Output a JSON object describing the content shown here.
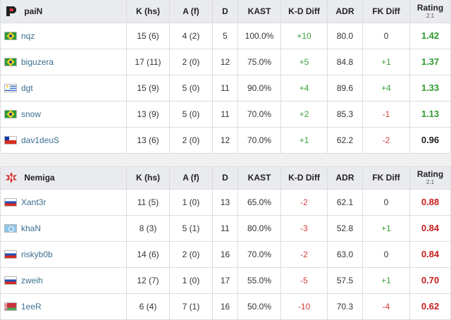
{
  "teams": [
    {
      "name": "paiN",
      "logo_icon": "pain-logo-icon",
      "headers": {
        "k": "K (hs)",
        "a": "A (f)",
        "d": "D",
        "kast": "KAST",
        "kd": "K-D Diff",
        "adr": "ADR",
        "fk": "FK Diff",
        "rating": "Rating",
        "rating_sub": "2.1"
      },
      "players": [
        {
          "flag": "br",
          "name": "nqz",
          "k": "15 (6)",
          "a": "4 (2)",
          "d": "5",
          "kast": "100.0%",
          "kd": "+10",
          "kd_sign": "pos",
          "adr": "80.0",
          "fk": "0",
          "fk_sign": "neutral",
          "rating": "1.42",
          "rating_class": "good"
        },
        {
          "flag": "br",
          "name": "biguzera",
          "k": "17 (11)",
          "a": "2 (0)",
          "d": "12",
          "kast": "75.0%",
          "kd": "+5",
          "kd_sign": "pos",
          "adr": "84.8",
          "fk": "+1",
          "fk_sign": "pos",
          "rating": "1.37",
          "rating_class": "good"
        },
        {
          "flag": "uy",
          "name": "dgt",
          "k": "15 (9)",
          "a": "5 (0)",
          "d": "11",
          "kast": "90.0%",
          "kd": "+4",
          "kd_sign": "pos",
          "adr": "89.6",
          "fk": "+4",
          "fk_sign": "pos",
          "rating": "1.33",
          "rating_class": "good"
        },
        {
          "flag": "br",
          "name": "snow",
          "k": "13 (9)",
          "a": "5 (0)",
          "d": "11",
          "kast": "70.0%",
          "kd": "+2",
          "kd_sign": "pos",
          "adr": "85.3",
          "fk": "-1",
          "fk_sign": "neg",
          "rating": "1.13",
          "rating_class": "good"
        },
        {
          "flag": "cl",
          "name": "dav1deuS",
          "k": "13 (6)",
          "a": "2 (0)",
          "d": "12",
          "kast": "70.0%",
          "kd": "+1",
          "kd_sign": "pos",
          "adr": "62.2",
          "fk": "-2",
          "fk_sign": "neg",
          "rating": "0.96",
          "rating_class": "mid"
        }
      ]
    },
    {
      "name": "Nemiga",
      "logo_icon": "nemiga-logo-icon",
      "headers": {
        "k": "K (hs)",
        "a": "A (f)",
        "d": "D",
        "kast": "KAST",
        "kd": "K-D Diff",
        "adr": "ADR",
        "fk": "FK Diff",
        "rating": "Rating",
        "rating_sub": "2.1"
      },
      "players": [
        {
          "flag": "ru",
          "name": "Xant3r",
          "k": "11 (5)",
          "a": "1 (0)",
          "d": "13",
          "kast": "65.0%",
          "kd": "-2",
          "kd_sign": "neg",
          "adr": "62.1",
          "fk": "0",
          "fk_sign": "neutral",
          "rating": "0.88",
          "rating_class": "bad"
        },
        {
          "flag": "un",
          "name": "khaN",
          "k": "8 (3)",
          "a": "5 (1)",
          "d": "11",
          "kast": "80.0%",
          "kd": "-3",
          "kd_sign": "neg",
          "adr": "52.8",
          "fk": "+1",
          "fk_sign": "pos",
          "rating": "0.84",
          "rating_class": "bad"
        },
        {
          "flag": "ru",
          "name": "riskyb0b",
          "k": "14 (6)",
          "a": "2 (0)",
          "d": "16",
          "kast": "70.0%",
          "kd": "-2",
          "kd_sign": "neg",
          "adr": "63.0",
          "fk": "0",
          "fk_sign": "neutral",
          "rating": "0.84",
          "rating_class": "bad"
        },
        {
          "flag": "ru",
          "name": "zweih",
          "k": "12 (7)",
          "a": "1 (0)",
          "d": "17",
          "kast": "55.0%",
          "kd": "-5",
          "kd_sign": "neg",
          "adr": "57.5",
          "fk": "+1",
          "fk_sign": "pos",
          "rating": "0.70",
          "rating_class": "bad"
        },
        {
          "flag": "by",
          "name": "1eeR",
          "k": "6 (4)",
          "a": "7 (1)",
          "d": "16",
          "kast": "50.0%",
          "kd": "-10",
          "kd_sign": "neg",
          "adr": "70.3",
          "fk": "-4",
          "fk_sign": "neg",
          "rating": "0.62",
          "rating_class": "bad"
        }
      ]
    }
  ],
  "colors": {
    "positive": "#3ba03b",
    "negative": "#d63b3b",
    "rating_good": "#2f9a2f",
    "rating_bad": "#c81d1d",
    "header_bg": "#e9ebee",
    "link": "#3a6f8f"
  }
}
